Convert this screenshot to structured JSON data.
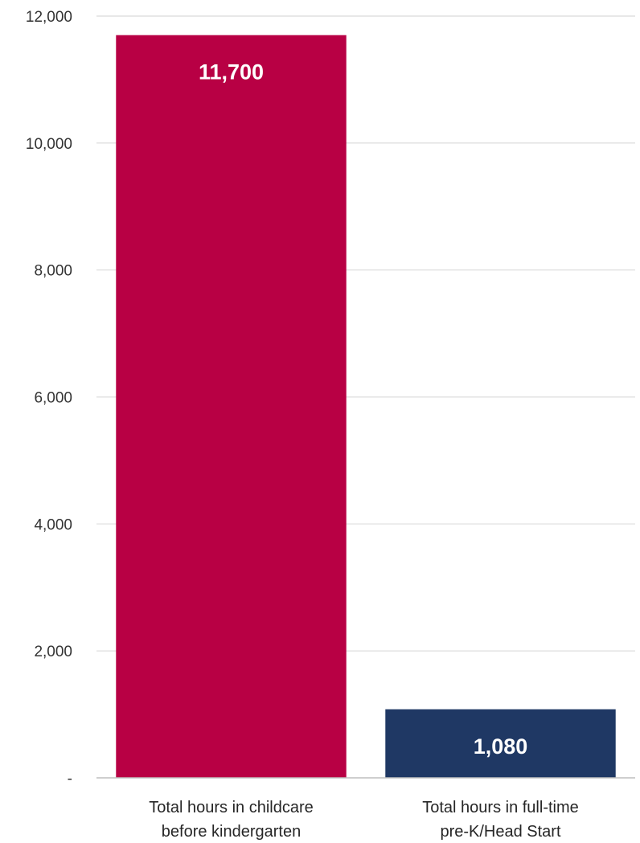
{
  "chart_data": {
    "type": "bar",
    "categories": [
      [
        "Total hours in childcare",
        "before kindergarten"
      ],
      [
        "Total hours in full-time",
        "pre-K/Head Start"
      ]
    ],
    "values": [
      11700,
      1080
    ],
    "data_labels": [
      "11,700",
      "1,080"
    ],
    "bar_colors": [
      "#b80044",
      "#1f3864"
    ],
    "ylim": [
      0,
      12000
    ],
    "yticks": [
      0,
      2000,
      4000,
      6000,
      8000,
      10000,
      12000
    ],
    "ytick_labels": [
      "-",
      "2,000",
      "4,000",
      "6,000",
      "8,000",
      "10,000",
      "12,000"
    ],
    "grid": true,
    "legend": "none"
  }
}
